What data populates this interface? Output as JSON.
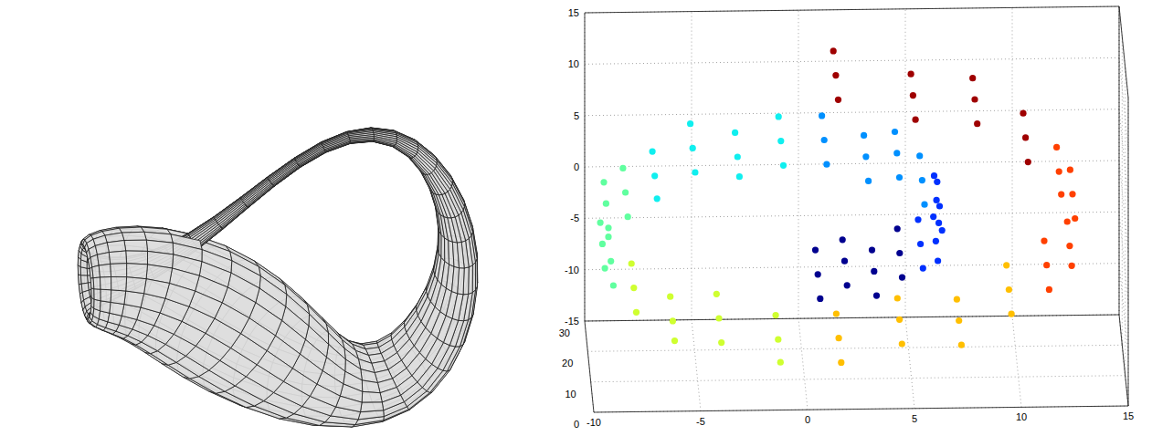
{
  "chart_data": [
    {
      "type": "klein_bottle"
    },
    {
      "type": "scatter3d",
      "grid": true,
      "xlim": [
        -10,
        15
      ],
      "ylim": [
        0,
        30
      ],
      "zlim": [
        -15,
        15
      ],
      "xticks": [
        -10,
        -5,
        0,
        5,
        10,
        15
      ],
      "yticks": [
        0,
        10,
        20,
        30
      ],
      "zticks": [
        -15,
        -10,
        -5,
        0,
        5,
        10,
        15
      ],
      "series": [
        {
          "color": "#00008f",
          "x": [
            0.62,
            0.62,
            0.62,
            1.93,
            1.93,
            1.93,
            3.24,
            3.24,
            3.24,
            4.48,
            4.48,
            4.48
          ],
          "y": [
            2,
            10,
            18,
            6,
            14,
            21,
            1,
            9,
            16,
            4,
            12,
            20
          ],
          "z": [
            -4.8,
            -4.8,
            -4.8,
            -4.72,
            -4.72,
            -4.72,
            -4.27,
            -4.27,
            -4.27,
            -3.42,
            -3.42,
            -3.42
          ]
        },
        {
          "color": "#0030ff",
          "x": [
            5.44,
            5.44,
            5.44,
            6.1,
            6.1,
            6.1,
            6.36,
            6.36,
            6.36,
            6.16,
            6.16,
            6.16
          ],
          "y": [
            3,
            11,
            19,
            7,
            15,
            0.5,
            5,
            13,
            21,
            1.5,
            9,
            17
          ],
          "z": [
            -2.26,
            -2.26,
            -2.26,
            -0.81,
            -0.81,
            -0.81,
            0.81,
            0.81,
            0.81,
            2.58,
            2.58,
            2.58
          ]
        },
        {
          "color": "#0090ff",
          "x": [
            5.5,
            5.5,
            5.5,
            4.38,
            4.38,
            4.38,
            2.86,
            2.86,
            2.86,
            0.95,
            0.95,
            0.95
          ],
          "y": [
            2,
            10,
            18,
            6,
            14,
            21,
            1,
            9,
            16,
            4,
            12,
            20
          ],
          "z": [
            4.24,
            4.24,
            4.24,
            5.72,
            5.72,
            5.72,
            6.89,
            6.89,
            6.89,
            7.67,
            7.67,
            7.67
          ]
        },
        {
          "color": "#10efef",
          "x": [
            -1.09,
            -1.09,
            -1.09,
            -3.18,
            -3.18,
            -3.18,
            -5.19,
            -5.19,
            -5.19,
            -7.02,
            -7.02,
            -7.02
          ],
          "y": [
            3,
            11,
            19,
            7,
            15,
            0.5,
            5,
            13,
            21,
            1.5,
            9,
            17
          ],
          "z": [
            7.92,
            7.92,
            7.92,
            7.61,
            7.61,
            7.61,
            6.74,
            6.74,
            6.74,
            5.27,
            5.27,
            5.27
          ]
        },
        {
          "color": "#60ff9f",
          "x": [
            -8.38,
            -8.38,
            -8.38,
            -9.23,
            -9.23,
            -9.23,
            -9.47,
            -9.47,
            -9.47,
            -9.03,
            -9.03,
            -9.03
          ],
          "y": [
            2,
            10,
            18,
            6,
            14,
            21,
            1,
            9,
            16,
            4,
            12,
            20
          ],
          "z": [
            3.39,
            3.39,
            3.39,
            1.15,
            1.15,
            1.15,
            -1.29,
            -1.29,
            -1.29,
            -3.87,
            -3.87,
            -3.87
          ]
        },
        {
          "color": "#cfff30",
          "x": [
            -7.97,
            -7.97,
            -7.97,
            -6.21,
            -6.21,
            -6.21,
            -3.96,
            -3.96,
            -3.96,
            -1.25,
            -1.25,
            -1.25
          ],
          "y": [
            3,
            11,
            19,
            7,
            15,
            0.5,
            5,
            13,
            21,
            1.5,
            9,
            17
          ],
          "z": [
            -6.2,
            -6.2,
            -6.2,
            -8.28,
            -8.28,
            -8.28,
            -9.85,
            -9.85,
            -9.85,
            -10.8,
            -10.8,
            -10.8
          ]
        },
        {
          "color": "#ffbf00",
          "x": [
            1.6,
            1.6,
            1.6,
            4.5,
            4.5,
            4.5,
            7.21,
            7.21,
            7.21,
            9.59,
            9.59,
            9.59
          ],
          "y": [
            2,
            10,
            18,
            6,
            14,
            21,
            1,
            9,
            16,
            4,
            12,
            20
          ],
          "z": [
            -11.03,
            -11.03,
            -11.03,
            -10.48,
            -10.48,
            -10.48,
            -9.17,
            -9.17,
            -9.17,
            -7.1,
            -7.1,
            -7.1
          ]
        },
        {
          "color": "#ff4000",
          "x": [
            11.34,
            11.34,
            11.34,
            12.36,
            12.36,
            12.36,
            12.58,
            12.58,
            12.58,
            11.89,
            11.89,
            11.89
          ],
          "y": [
            3,
            11,
            19,
            7,
            15,
            0.5,
            5,
            13,
            21,
            1.5,
            9,
            17
          ],
          "z": [
            -4.47,
            -4.47,
            -4.47,
            -1.44,
            -1.44,
            -1.44,
            1.82,
            1.82,
            1.82,
            5.22,
            5.22,
            5.22
          ]
        },
        {
          "color": "#9f0000",
          "x": [
            10.34,
            10.34,
            10.34,
            8.02,
            8.02,
            8.02,
            5.06,
            5.06,
            5.06,
            1.49,
            1.49,
            1.49
          ],
          "y": [
            2,
            10,
            18,
            6,
            14,
            21,
            1,
            9,
            16,
            4,
            12,
            20
          ],
          "z": [
            8.26,
            8.26,
            8.26,
            10.85,
            10.85,
            10.85,
            12.8,
            12.8,
            12.8,
            13.95,
            13.95,
            13.95
          ]
        }
      ]
    }
  ]
}
